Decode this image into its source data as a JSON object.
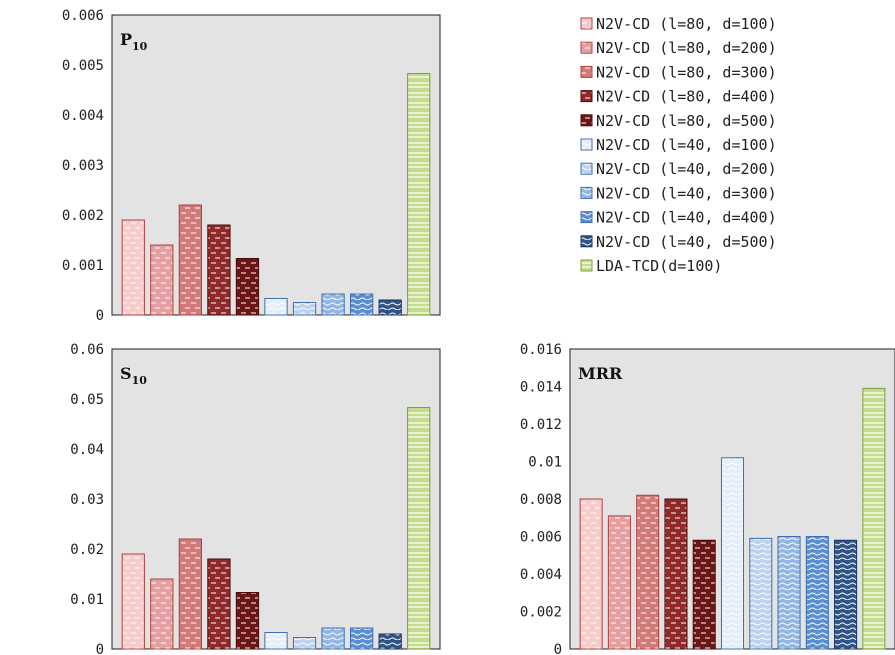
{
  "colors": {
    "plot_bg": "#e3e3e3",
    "red_1": "#f4cccc",
    "red_2": "#e4a0a0",
    "red_3": "#d07a7a",
    "red_4": "#8e2a2a",
    "red_5": "#6a1616",
    "blue_1": "#e4eefa",
    "blue_2": "#bdd2ee",
    "blue_3": "#93b6e2",
    "blue_4": "#5a8ed3",
    "blue_5": "#2f5588",
    "green": "#c5dc8f"
  },
  "legend": [
    {
      "label": "N2V-CD  (l=80,  d=100)",
      "color_key": "red_1"
    },
    {
      "label": "N2V-CD  (l=80,  d=200)",
      "color_key": "red_2"
    },
    {
      "label": "N2V-CD  (l=80,  d=300)",
      "color_key": "red_3"
    },
    {
      "label": "N2V-CD  (l=80,  d=400)",
      "color_key": "red_4"
    },
    {
      "label": "N2V-CD  (l=80,  d=500)",
      "color_key": "red_5"
    },
    {
      "label": "N2V-CD  (l=40,  d=100)",
      "color_key": "blue_1"
    },
    {
      "label": "N2V-CD  (l=40,  d=200)",
      "color_key": "blue_2"
    },
    {
      "label": "N2V-CD  (l=40,  d=300)",
      "color_key": "blue_3"
    },
    {
      "label": "N2V-CD  (l=40,  d=400)",
      "color_key": "blue_4"
    },
    {
      "label": "N2V-CD  (l=40,  d=500)",
      "color_key": "blue_5"
    },
    {
      "label": "LDA-TCD(d=100)",
      "color_key": "green"
    }
  ],
  "chart_data": [
    {
      "type": "bar",
      "title": "P",
      "title_sub": "10",
      "ylim": [
        0,
        0.006
      ],
      "yticks": [
        "0",
        "0.001",
        "0.002",
        "0.003",
        "0.004",
        "0.005",
        "0.006"
      ],
      "grid": false,
      "legend_position": "right",
      "series_order": [
        "N2V-CD (l=80, d=100)",
        "N2V-CD (l=80, d=200)",
        "N2V-CD (l=80, d=300)",
        "N2V-CD (l=80, d=400)",
        "N2V-CD (l=80, d=500)",
        "N2V-CD (l=40, d=100)",
        "N2V-CD (l=40, d=200)",
        "N2V-CD (l=40, d=300)",
        "N2V-CD (l=40, d=400)",
        "N2V-CD (l=40, d=500)",
        "LDA-TCD(d=100)"
      ],
      "values": [
        0.0019,
        0.0014,
        0.0022,
        0.0018,
        0.00113,
        0.00033,
        0.00025,
        0.00042,
        0.00042,
        0.0003,
        0.00483
      ]
    },
    {
      "type": "bar",
      "title": "S",
      "title_sub": "10",
      "ylim": [
        0,
        0.06
      ],
      "yticks": [
        "0",
        "0.01",
        "0.02",
        "0.03",
        "0.04",
        "0.05",
        "0.06"
      ],
      "grid": false,
      "values": [
        0.019,
        0.014,
        0.022,
        0.018,
        0.0113,
        0.0033,
        0.0023,
        0.0042,
        0.0042,
        0.003,
        0.0483
      ]
    },
    {
      "type": "bar",
      "title": "MRR",
      "title_sub": "",
      "ylim": [
        0,
        0.016
      ],
      "yticks": [
        "0",
        "0.002",
        "0.004",
        "0.006",
        "0.008",
        "0.01",
        "0.012",
        "0.014",
        "0.016"
      ],
      "grid": false,
      "values": [
        0.008,
        0.0071,
        0.0082,
        0.008,
        0.0058,
        0.0102,
        0.0059,
        0.006,
        0.006,
        0.0058,
        0.0139
      ]
    }
  ]
}
